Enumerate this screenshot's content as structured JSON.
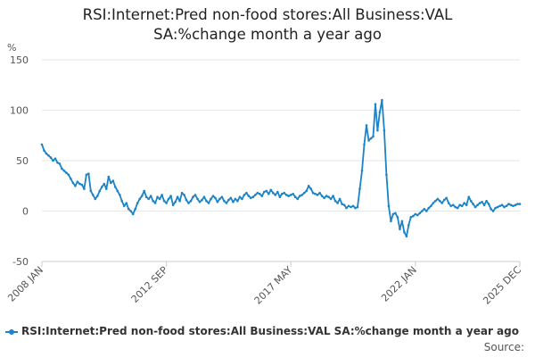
{
  "title_line1": "RSI:Internet:Pred non-food stores:All Business:VAL",
  "title_line2": "SA:%change month a year ago",
  "source_label": "Source:",
  "colors": {
    "series": "#1a84c7",
    "grid": "#e6e6e6",
    "axis": "#cccccc"
  },
  "chart_data": {
    "type": "line",
    "title": "RSI:Internet:Pred non-food stores:All Business:VAL SA:%change month a year ago",
    "ylabel": "%",
    "xlabel": "",
    "ylim": [
      -50,
      150
    ],
    "yticks": [
      -50,
      0,
      50,
      100,
      150
    ],
    "xlim": [
      "2008-01",
      "2025-12"
    ],
    "xticks": [
      {
        "label": "2008 JAN",
        "x": "2008-01"
      },
      {
        "label": "2012 SEP",
        "x": "2012-09"
      },
      {
        "label": "2017 MAY",
        "x": "2017-05"
      },
      {
        "label": "2022 JAN",
        "x": "2022-01"
      },
      {
        "label": "2025 DEC",
        "x": "2025-12"
      }
    ],
    "grid": true,
    "legend_position": "bottom",
    "series": [
      {
        "name": "RSI:Internet:Pred non-food stores:All Business:VAL SA:%change month a year ago",
        "color": "#1a84c7",
        "points": [
          [
            "2008-01",
            66
          ],
          [
            "2008-02",
            60
          ],
          [
            "2008-03",
            57
          ],
          [
            "2008-04",
            55
          ],
          [
            "2008-05",
            53
          ],
          [
            "2008-06",
            50
          ],
          [
            "2008-07",
            52
          ],
          [
            "2008-08",
            48
          ],
          [
            "2008-09",
            47
          ],
          [
            "2008-10",
            42
          ],
          [
            "2008-11",
            40
          ],
          [
            "2008-12",
            38
          ],
          [
            "2009-01",
            36
          ],
          [
            "2009-02",
            32
          ],
          [
            "2009-03",
            28
          ],
          [
            "2009-04",
            25
          ],
          [
            "2009-05",
            29
          ],
          [
            "2009-06",
            27
          ],
          [
            "2009-07",
            26
          ],
          [
            "2009-08",
            22
          ],
          [
            "2009-09",
            36
          ],
          [
            "2009-10",
            37
          ],
          [
            "2009-11",
            20
          ],
          [
            "2009-12",
            16
          ],
          [
            "2010-01",
            12
          ],
          [
            "2010-02",
            15
          ],
          [
            "2010-03",
            20
          ],
          [
            "2010-04",
            24
          ],
          [
            "2010-05",
            27
          ],
          [
            "2010-06",
            22
          ],
          [
            "2010-07",
            34
          ],
          [
            "2010-08",
            28
          ],
          [
            "2010-09",
            30
          ],
          [
            "2010-10",
            24
          ],
          [
            "2010-11",
            20
          ],
          [
            "2010-12",
            16
          ],
          [
            "2011-01",
            10
          ],
          [
            "2011-02",
            5
          ],
          [
            "2011-03",
            8
          ],
          [
            "2011-04",
            2
          ],
          [
            "2011-05",
            0
          ],
          [
            "2011-06",
            -3
          ],
          [
            "2011-07",
            2
          ],
          [
            "2011-08",
            8
          ],
          [
            "2011-09",
            12
          ],
          [
            "2011-10",
            15
          ],
          [
            "2011-11",
            20
          ],
          [
            "2011-12",
            14
          ],
          [
            "2012-01",
            12
          ],
          [
            "2012-02",
            15
          ],
          [
            "2012-03",
            10
          ],
          [
            "2012-04",
            8
          ],
          [
            "2012-05",
            14
          ],
          [
            "2012-06",
            12
          ],
          [
            "2012-07",
            16
          ],
          [
            "2012-08",
            10
          ],
          [
            "2012-09",
            8
          ],
          [
            "2012-10",
            12
          ],
          [
            "2012-11",
            15
          ],
          [
            "2012-12",
            6
          ],
          [
            "2013-01",
            9
          ],
          [
            "2013-02",
            14
          ],
          [
            "2013-03",
            10
          ],
          [
            "2013-04",
            18
          ],
          [
            "2013-05",
            16
          ],
          [
            "2013-06",
            11
          ],
          [
            "2013-07",
            8
          ],
          [
            "2013-08",
            10
          ],
          [
            "2013-09",
            14
          ],
          [
            "2013-10",
            16
          ],
          [
            "2013-11",
            12
          ],
          [
            "2013-12",
            9
          ],
          [
            "2014-01",
            11
          ],
          [
            "2014-02",
            14
          ],
          [
            "2014-03",
            10
          ],
          [
            "2014-04",
            8
          ],
          [
            "2014-05",
            12
          ],
          [
            "2014-06",
            15
          ],
          [
            "2014-07",
            13
          ],
          [
            "2014-08",
            9
          ],
          [
            "2014-09",
            12
          ],
          [
            "2014-10",
            14
          ],
          [
            "2014-11",
            10
          ],
          [
            "2014-12",
            8
          ],
          [
            "2015-01",
            11
          ],
          [
            "2015-02",
            13
          ],
          [
            "2015-03",
            9
          ],
          [
            "2015-04",
            12
          ],
          [
            "2015-05",
            10
          ],
          [
            "2015-06",
            14
          ],
          [
            "2015-07",
            12
          ],
          [
            "2015-08",
            16
          ],
          [
            "2015-09",
            18
          ],
          [
            "2015-10",
            15
          ],
          [
            "2015-11",
            13
          ],
          [
            "2015-12",
            14
          ],
          [
            "2016-01",
            16
          ],
          [
            "2016-02",
            18
          ],
          [
            "2016-03",
            17
          ],
          [
            "2016-04",
            15
          ],
          [
            "2016-05",
            19
          ],
          [
            "2016-06",
            20
          ],
          [
            "2016-07",
            17
          ],
          [
            "2016-08",
            21
          ],
          [
            "2016-09",
            18
          ],
          [
            "2016-10",
            16
          ],
          [
            "2016-11",
            19
          ],
          [
            "2016-12",
            14
          ],
          [
            "2017-01",
            17
          ],
          [
            "2017-02",
            18
          ],
          [
            "2017-03",
            16
          ],
          [
            "2017-04",
            15
          ],
          [
            "2017-05",
            16
          ],
          [
            "2017-06",
            17
          ],
          [
            "2017-07",
            14
          ],
          [
            "2017-08",
            12
          ],
          [
            "2017-09",
            15
          ],
          [
            "2017-10",
            16
          ],
          [
            "2017-11",
            18
          ],
          [
            "2017-12",
            20
          ],
          [
            "2018-01",
            25
          ],
          [
            "2018-02",
            22
          ],
          [
            "2018-03",
            18
          ],
          [
            "2018-04",
            17
          ],
          [
            "2018-05",
            16
          ],
          [
            "2018-06",
            18
          ],
          [
            "2018-07",
            15
          ],
          [
            "2018-08",
            13
          ],
          [
            "2018-09",
            15
          ],
          [
            "2018-10",
            14
          ],
          [
            "2018-11",
            12
          ],
          [
            "2018-12",
            15
          ],
          [
            "2019-01",
            10
          ],
          [
            "2019-02",
            8
          ],
          [
            "2019-03",
            12
          ],
          [
            "2019-04",
            7
          ],
          [
            "2019-05",
            6
          ],
          [
            "2019-06",
            3
          ],
          [
            "2019-07",
            5
          ],
          [
            "2019-08",
            4
          ],
          [
            "2019-09",
            5
          ],
          [
            "2019-10",
            3
          ],
          [
            "2019-11",
            4
          ],
          [
            "2019-12",
            22
          ],
          [
            "2020-01",
            40
          ],
          [
            "2020-02",
            66
          ],
          [
            "2020-03",
            85
          ],
          [
            "2020-04",
            70
          ],
          [
            "2020-05",
            72
          ],
          [
            "2020-06",
            74
          ],
          [
            "2020-07",
            106
          ],
          [
            "2020-08",
            80
          ],
          [
            "2020-09",
            98
          ],
          [
            "2020-10",
            110
          ],
          [
            "2020-11",
            80
          ],
          [
            "2020-12",
            36
          ],
          [
            "2021-01",
            5
          ],
          [
            "2021-02",
            -10
          ],
          [
            "2021-03",
            -3
          ],
          [
            "2021-04",
            -2
          ],
          [
            "2021-05",
            -6
          ],
          [
            "2021-06",
            -18
          ],
          [
            "2021-07",
            -10
          ],
          [
            "2021-08",
            -21
          ],
          [
            "2021-09",
            -25
          ],
          [
            "2021-10",
            -14
          ],
          [
            "2021-11",
            -6
          ],
          [
            "2021-12",
            -5
          ],
          [
            "2022-01",
            -3
          ],
          [
            "2022-02",
            -4
          ],
          [
            "2022-03",
            -2
          ],
          [
            "2022-04",
            0
          ],
          [
            "2022-05",
            2
          ],
          [
            "2022-06",
            0
          ],
          [
            "2022-07",
            3
          ],
          [
            "2022-08",
            5
          ],
          [
            "2022-09",
            8
          ],
          [
            "2022-10",
            10
          ],
          [
            "2022-11",
            12
          ],
          [
            "2022-12",
            10
          ],
          [
            "2023-01",
            8
          ],
          [
            "2023-02",
            11
          ],
          [
            "2023-03",
            13
          ],
          [
            "2023-04",
            8
          ],
          [
            "2023-05",
            5
          ],
          [
            "2023-06",
            6
          ],
          [
            "2023-07",
            4
          ],
          [
            "2023-08",
            3
          ],
          [
            "2023-09",
            6
          ],
          [
            "2023-10",
            5
          ],
          [
            "2023-11",
            8
          ],
          [
            "2023-12",
            6
          ],
          [
            "2024-01",
            14
          ],
          [
            "2024-02",
            10
          ],
          [
            "2024-03",
            7
          ],
          [
            "2024-04",
            4
          ],
          [
            "2024-05",
            6
          ],
          [
            "2024-06",
            8
          ],
          [
            "2024-07",
            9
          ],
          [
            "2024-08",
            6
          ],
          [
            "2024-09",
            10
          ],
          [
            "2024-10",
            7
          ],
          [
            "2024-11",
            2
          ],
          [
            "2024-12",
            0
          ],
          [
            "2025-01",
            3
          ],
          [
            "2025-02",
            4
          ],
          [
            "2025-03",
            5
          ],
          [
            "2025-04",
            6
          ],
          [
            "2025-05",
            4
          ],
          [
            "2025-06",
            5
          ],
          [
            "2025-07",
            7
          ],
          [
            "2025-08",
            6
          ],
          [
            "2025-09",
            5
          ],
          [
            "2025-10",
            6
          ],
          [
            "2025-11",
            7
          ],
          [
            "2025-12",
            7
          ]
        ]
      }
    ]
  }
}
